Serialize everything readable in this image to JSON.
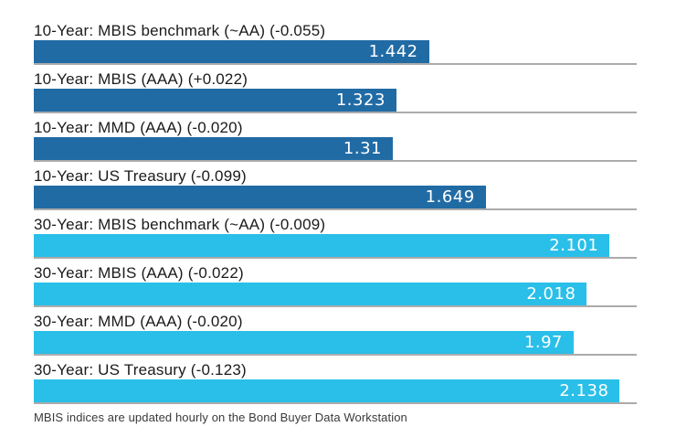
{
  "chart_data": {
    "type": "bar",
    "orientation": "horizontal",
    "title": "",
    "xlabel": "",
    "ylabel": "",
    "xlim": [
      0,
      2.2
    ],
    "grid": "off",
    "legend": "none",
    "bars": [
      {
        "label": "10-Year: MBIS benchmark (~AA) (-0.055)",
        "value": 1.442,
        "value_label": "1.442",
        "change": -0.055,
        "group": "10-year"
      },
      {
        "label": "10-Year: MBIS (AAA) (+0.022)",
        "value": 1.323,
        "value_label": "1.323",
        "change": 0.022,
        "group": "10-year"
      },
      {
        "label": "10-Year: MMD (AAA) (-0.020)",
        "value": 1.31,
        "value_label": "1.31",
        "change": -0.02,
        "group": "10-year"
      },
      {
        "label": "10-Year: US Treasury (-0.099)",
        "value": 1.649,
        "value_label": "1.649",
        "change": -0.099,
        "group": "10-year"
      },
      {
        "label": "30-Year: MBIS benchmark (~AA) (-0.009)",
        "value": 2.101,
        "value_label": "2.101",
        "change": -0.009,
        "group": "30-year"
      },
      {
        "label": "30-Year: MBIS (AAA) (-0.022)",
        "value": 2.018,
        "value_label": "2.018",
        "change": -0.022,
        "group": "30-year"
      },
      {
        "label": "30-Year: MMD (AAA) (-0.020)",
        "value": 1.97,
        "value_label": "1.97",
        "change": -0.02,
        "group": "30-year"
      },
      {
        "label": "30-Year: US Treasury (-0.123)",
        "value": 2.138,
        "value_label": "2.138",
        "change": -0.123,
        "group": "30-year"
      }
    ],
    "colors": {
      "ten_year": "#216BA5",
      "thirty_year": "#29BFE9",
      "baseline": "#ABABAB",
      "value_text": "#FFFFFF",
      "label_text": "#1B1B1B"
    },
    "footnote": "MBIS indices are updated hourly on the Bond Buyer Data Workstation"
  }
}
